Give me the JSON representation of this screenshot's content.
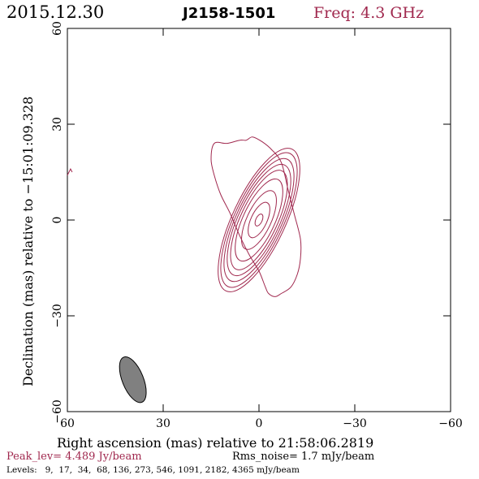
{
  "header": {
    "date": "2015.12.30",
    "source": "J2158-1501",
    "freq_label": "Freq: 4.3 GHz"
  },
  "footer": {
    "peak": "Peak_lev=  4.489 Jy/beam",
    "rms": "Rms_noise=  1.7 mJy/beam",
    "levels": "Levels:   9,  17,  34,  68, 136, 273, 546, 1091, 2182, 4365 mJy/beam"
  },
  "colors": {
    "contour": "#a0284e",
    "peak_text": "#a0284e",
    "freq_text": "#a0284e",
    "beam_fill": "#808080",
    "axes": "#000000"
  },
  "chart_data": {
    "type": "contour",
    "xlabel": "Right ascension (mas) relative to 21:58:06.2819",
    "ylabel": "Declination (mas) relative to −15:01:09.328",
    "xlim": [
      60,
      -60
    ],
    "ylim": [
      -60,
      60
    ],
    "xticks": [
      60,
      30,
      0,
      -30,
      -60
    ],
    "yticks": [
      -60,
      -30,
      0,
      30,
      60
    ],
    "xtick_labels": [
      "60",
      "30",
      "0",
      "−30",
      "−60"
    ],
    "ytick_labels": [
      "−60",
      "−30",
      "0",
      "30",
      "60"
    ],
    "levels_mJy": [
      9,
      17,
      34,
      68,
      136,
      273,
      546,
      1091,
      2182,
      4365
    ],
    "peak_Jy_per_beam": 4.489,
    "rms_mJy_per_beam": 1.7,
    "source_center": [
      0,
      0
    ],
    "contours": [
      {
        "level": 4365,
        "ra_halfwidth": 1.0,
        "dec_halfwidth": 2.0,
        "pa_deg": 25
      },
      {
        "level": 2182,
        "ra_halfwidth": 2.5,
        "dec_halfwidth": 6.0,
        "pa_deg": 25
      },
      {
        "level": 1091,
        "ra_halfwidth": 3.8,
        "dec_halfwidth": 10.0,
        "pa_deg": 25
      },
      {
        "level": 546,
        "ra_halfwidth": 5.0,
        "dec_halfwidth": 14.0,
        "pa_deg": 25
      },
      {
        "level": 273,
        "ra_halfwidth": 5.8,
        "dec_halfwidth": 17.0,
        "pa_deg": 25
      },
      {
        "level": 136,
        "ra_halfwidth": 6.5,
        "dec_halfwidth": 19.0,
        "pa_deg": 25
      },
      {
        "level": 68,
        "ra_halfwidth": 7.1,
        "dec_halfwidth": 21.0,
        "pa_deg": 25
      },
      {
        "level": 34,
        "ra_halfwidth": 7.7,
        "dec_halfwidth": 23.0,
        "pa_deg": 25
      },
      {
        "level": 17,
        "ra_halfwidth": 8.3,
        "dec_halfwidth": 24.5,
        "pa_deg": 25
      }
    ],
    "outer_contour": {
      "level": 9,
      "points": [
        [
          14,
          24
        ],
        [
          10,
          24
        ],
        [
          6,
          25
        ],
        [
          4,
          25
        ],
        [
          2,
          26
        ],
        [
          -1,
          24.5
        ],
        [
          -4,
          22
        ],
        [
          -7,
          18
        ],
        [
          -9,
          10
        ],
        [
          -11,
          2
        ],
        [
          -13,
          -6
        ],
        [
          -13,
          -12
        ],
        [
          -12,
          -17
        ],
        [
          -10,
          -21
        ],
        [
          -7,
          -23
        ],
        [
          -5,
          -24
        ],
        [
          -3,
          -23
        ],
        [
          -2,
          -21
        ],
        [
          0,
          -16
        ],
        [
          3,
          -11
        ],
        [
          6,
          -5
        ],
        [
          9,
          2
        ],
        [
          12,
          8
        ],
        [
          14,
          14
        ],
        [
          15,
          19
        ]
      ]
    },
    "edge_feature": {
      "level": 9,
      "points": [
        [
          60,
          14
        ],
        [
          59,
          16
        ],
        [
          58.5,
          15
        ]
      ]
    },
    "beam": {
      "center": [
        39.5,
        -50
      ],
      "major_mas": 15.2,
      "minor_mas": 6.6,
      "pa_deg": 22
    }
  }
}
